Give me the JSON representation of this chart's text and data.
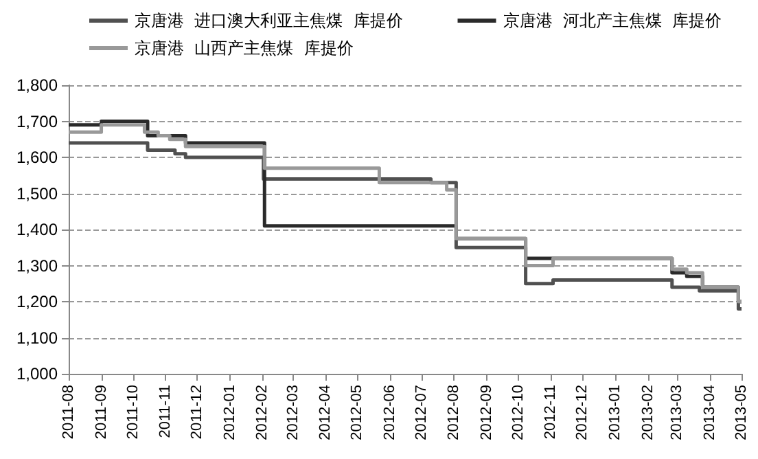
{
  "chart_data": {
    "type": "step",
    "legend": "top",
    "grid": "y",
    "marker": "none",
    "line_style": "solid",
    "xlim": [
      "2011-08-01",
      "2013-05-01"
    ],
    "xticks": [
      "2011-08",
      "2011-09",
      "2011-10",
      "2011-11",
      "2011-12",
      "2012-01",
      "2012-02",
      "2012-03",
      "2012-04",
      "2012-05",
      "2012-06",
      "2012-07",
      "2012-08",
      "2012-09",
      "2012-10",
      "2012-11",
      "2012-12",
      "2013-01",
      "2013-02",
      "2013-03",
      "2013-04",
      "2013-05"
    ],
    "ylim": [
      1000,
      1800
    ],
    "yticks": [
      {
        "value": 1000,
        "label": "1,000"
      },
      {
        "value": 1100,
        "label": "1,100"
      },
      {
        "value": 1200,
        "label": "1,200"
      },
      {
        "value": 1300,
        "label": "1,300"
      },
      {
        "value": 1400,
        "label": "1,400"
      },
      {
        "value": 1500,
        "label": "1,500"
      },
      {
        "value": 1600,
        "label": "1,600"
      },
      {
        "value": 1700,
        "label": "1,700"
      },
      {
        "value": 1800,
        "label": "1,800"
      }
    ],
    "series": [
      {
        "name": "京唐港  进口澳大利亚主焦煤  库提价",
        "color": "#505050",
        "x": [
          "2011-08-01",
          "2011-10-15",
          "2011-11-10",
          "2011-11-20",
          "2012-02-02",
          "2012-07-10",
          "2012-08-03",
          "2012-10-08",
          "2012-11-03",
          "2013-02-24",
          "2013-03-22",
          "2013-04-28",
          "2013-05-01"
        ],
        "values": [
          1640,
          1620,
          1610,
          1600,
          1540,
          1530,
          1350,
          1250,
          1260,
          1240,
          1230,
          1180,
          1180
        ]
      },
      {
        "name": "京唐港  河北产主焦煤  库提价",
        "color": "#2a2a2a",
        "x": [
          "2011-08-01",
          "2011-09-01",
          "2011-10-15",
          "2011-11-20",
          "2012-02-03",
          "2012-08-03",
          "2012-10-08",
          "2013-02-24",
          "2013-03-10",
          "2013-03-25",
          "2013-04-28",
          "2013-05-01"
        ],
        "values": [
          1690,
          1700,
          1660,
          1640,
          1410,
          1375,
          1320,
          1280,
          1270,
          1240,
          1200,
          1200
        ]
      },
      {
        "name": "京唐港  山西产主焦煤  库提价",
        "color": "#999999",
        "x": [
          "2011-08-01",
          "2011-09-01",
          "2011-10-12",
          "2011-10-25",
          "2011-11-05",
          "2011-11-20",
          "2012-02-03",
          "2012-05-22",
          "2012-07-25",
          "2012-08-03",
          "2012-10-08",
          "2012-11-03",
          "2013-02-24",
          "2013-03-10",
          "2013-03-25",
          "2013-04-28",
          "2013-05-01"
        ],
        "values": [
          1670,
          1690,
          1670,
          1660,
          1650,
          1630,
          1570,
          1530,
          1510,
          1375,
          1300,
          1320,
          1290,
          1280,
          1240,
          1200,
          1200
        ]
      }
    ]
  }
}
